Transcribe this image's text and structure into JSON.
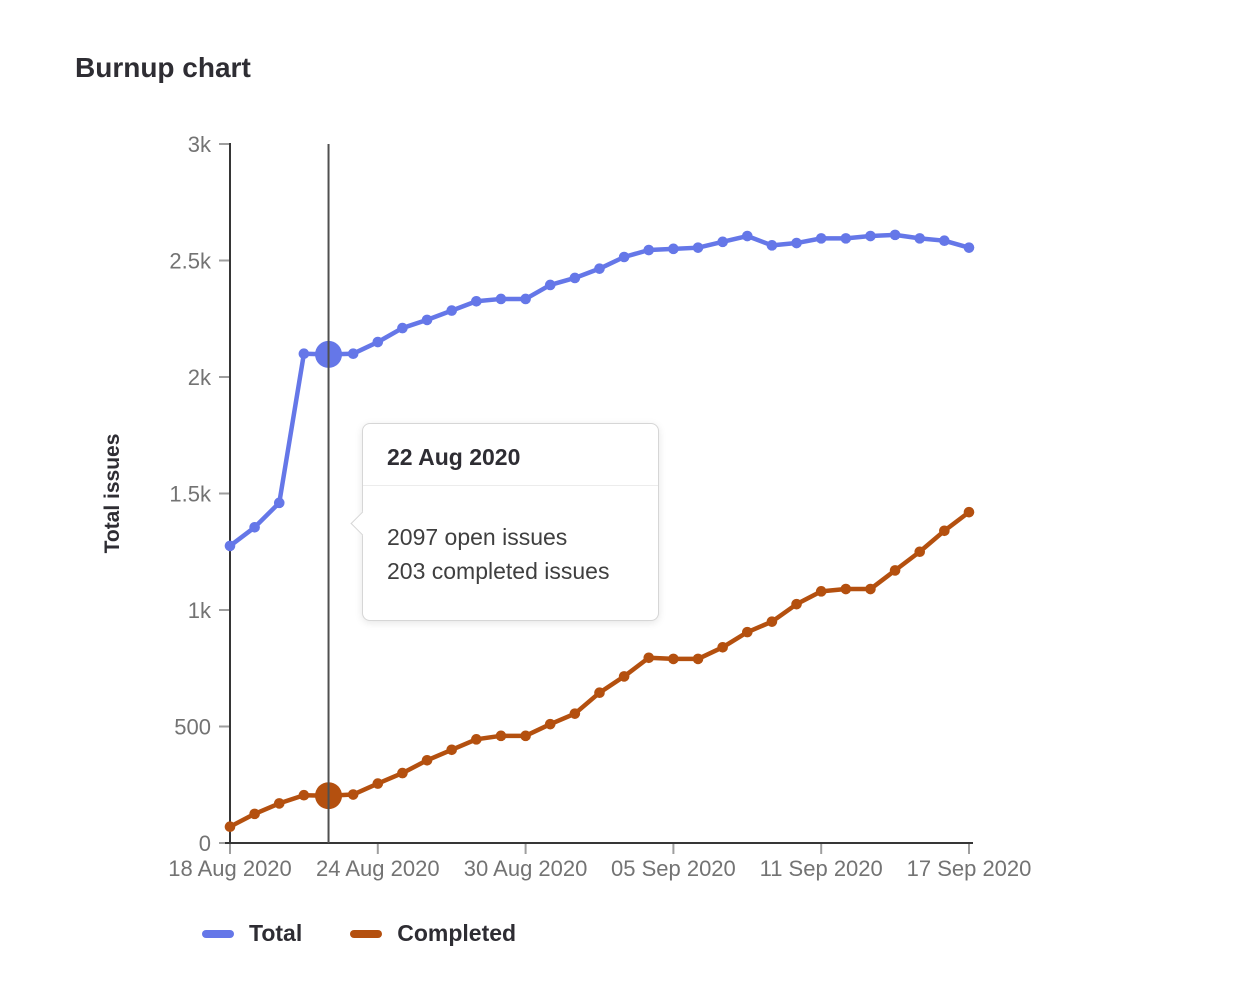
{
  "header": {
    "title": "Burnup chart"
  },
  "chart_data": {
    "type": "line",
    "title": "Burnup chart",
    "xlabel": "",
    "ylabel": "Total issues",
    "ylim": [
      0,
      3000
    ],
    "grid": false,
    "legend_position": "bottom",
    "yticks": [
      {
        "value": 0,
        "label": "0"
      },
      {
        "value": 500,
        "label": "500"
      },
      {
        "value": 1000,
        "label": "1k"
      },
      {
        "value": 1500,
        "label": "1.5k"
      },
      {
        "value": 2000,
        "label": "2k"
      },
      {
        "value": 2500,
        "label": "2.5k"
      },
      {
        "value": 3000,
        "label": "3k"
      }
    ],
    "x": [
      "18 Aug 2020",
      "19 Aug 2020",
      "20 Aug 2020",
      "21 Aug 2020",
      "22 Aug 2020",
      "23 Aug 2020",
      "24 Aug 2020",
      "25 Aug 2020",
      "26 Aug 2020",
      "27 Aug 2020",
      "28 Aug 2020",
      "29 Aug 2020",
      "30 Aug 2020",
      "31 Aug 2020",
      "01 Sep 2020",
      "02 Sep 2020",
      "03 Sep 2020",
      "04 Sep 2020",
      "05 Sep 2020",
      "06 Sep 2020",
      "07 Sep 2020",
      "08 Sep 2020",
      "09 Sep 2020",
      "10 Sep 2020",
      "11 Sep 2020",
      "12 Sep 2020",
      "13 Sep 2020",
      "14 Sep 2020",
      "15 Sep 2020",
      "16 Sep 2020",
      "17 Sep 2020"
    ],
    "xticks": [
      {
        "index": 0,
        "label": "18 Aug 2020"
      },
      {
        "index": 6,
        "label": "24 Aug 2020"
      },
      {
        "index": 12,
        "label": "30 Aug 2020"
      },
      {
        "index": 18,
        "label": "05 Sep 2020"
      },
      {
        "index": 24,
        "label": "11 Sep 2020"
      },
      {
        "index": 30,
        "label": "17 Sep 2020"
      }
    ],
    "series": [
      {
        "name": "Total",
        "color": "#6577e8",
        "values": [
          1275,
          1355,
          1460,
          2100,
          2097,
          2100,
          2150,
          2210,
          2245,
          2285,
          2325,
          2335,
          2335,
          2395,
          2425,
          2465,
          2515,
          2545,
          2550,
          2555,
          2580,
          2605,
          2565,
          2575,
          2595,
          2595,
          2605,
          2610,
          2595,
          2585,
          2555
        ]
      },
      {
        "name": "Completed",
        "color": "#b4500f",
        "values": [
          70,
          125,
          170,
          205,
          203,
          208,
          255,
          300,
          355,
          400,
          445,
          460,
          460,
          510,
          555,
          645,
          715,
          795,
          790,
          790,
          840,
          905,
          950,
          1025,
          1080,
          1090,
          1090,
          1170,
          1250,
          1340,
          1420
        ]
      }
    ],
    "hover": {
      "index": 4,
      "date": "22 Aug 2020",
      "open_issues": 2097,
      "completed_issues": 203
    }
  },
  "tooltip": {
    "title": "22 Aug 2020",
    "lines": [
      "2097 open issues",
      "203 completed issues"
    ]
  },
  "legend": {
    "items": [
      {
        "label": "Total",
        "color": "#6577e8"
      },
      {
        "label": "Completed",
        "color": "#b4500f"
      }
    ]
  },
  "colors": {
    "axis": "#363636",
    "tick": "#9e9e9e",
    "tick_label": "#737373",
    "heading": "#2e2d33",
    "hover_line": "#505050",
    "tooltip_border": "#d6d6d6"
  }
}
